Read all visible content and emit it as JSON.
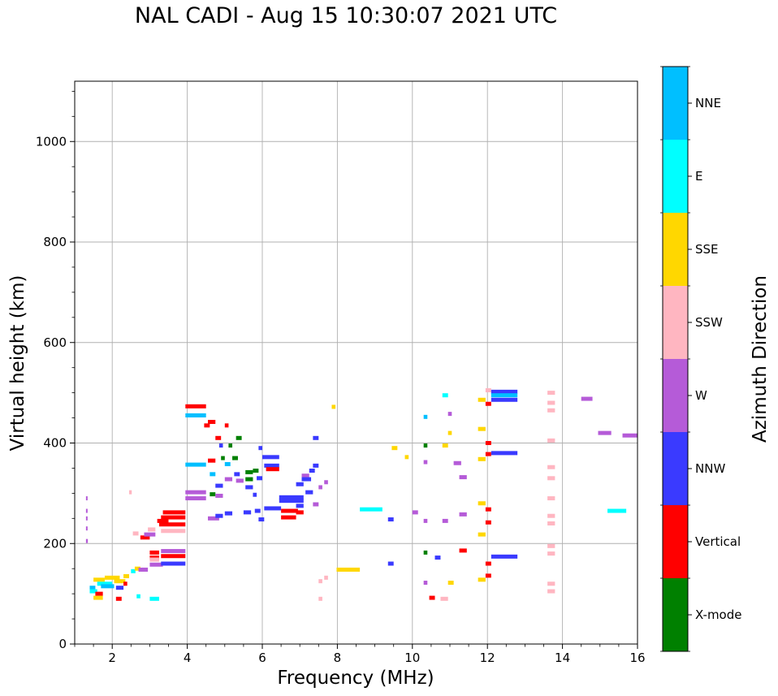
{
  "title": "NAL CADI - Aug 15 10:30:07 2021 UTC",
  "chart_data": {
    "type": "scatter",
    "title": "NAL CADI - Aug 15 10:30:07 2021 UTC",
    "xlabel": "Frequency (MHz)",
    "ylabel": "Virtual height (km)",
    "xlim": [
      1,
      16
    ],
    "ylim": [
      0,
      1120
    ],
    "xticks": [
      2,
      4,
      6,
      8,
      10,
      12,
      14,
      16
    ],
    "yticks": [
      0,
      200,
      400,
      600,
      800,
      1000
    ],
    "grid": true,
    "colorbar": {
      "label": "Azimuth Direction",
      "categories": [
        {
          "name": "X-mode",
          "color": "#008000"
        },
        {
          "name": "Vertical",
          "color": "#ff0000"
        },
        {
          "name": "NNW",
          "color": "#3a3aff"
        },
        {
          "name": "W",
          "color": "#b55bd8"
        },
        {
          "name": "SSW",
          "color": "#ffb6c1"
        },
        {
          "name": "SSE",
          "color": "#ffd700"
        },
        {
          "name": "E",
          "color": "#00ffff"
        },
        {
          "name": "NNE",
          "color": "#00bfff"
        }
      ]
    },
    "segments": [
      {
        "f1": 1.3,
        "f2": 1.33,
        "h": 290,
        "dir": "W"
      },
      {
        "f1": 1.3,
        "f2": 1.33,
        "h": 265,
        "dir": "W"
      },
      {
        "f1": 1.3,
        "f2": 1.33,
        "h": 250,
        "dir": "W"
      },
      {
        "f1": 1.3,
        "f2": 1.33,
        "h": 230,
        "dir": "W"
      },
      {
        "f1": 1.3,
        "f2": 1.35,
        "h": 205,
        "dir": "W"
      },
      {
        "f1": 1.4,
        "f2": 1.55,
        "h": 112,
        "dir": "NNE"
      },
      {
        "f1": 1.4,
        "f2": 1.6,
        "h": 105,
        "dir": "E"
      },
      {
        "f1": 1.5,
        "f2": 1.8,
        "h": 128,
        "dir": "SSE"
      },
      {
        "f1": 1.55,
        "f2": 1.75,
        "h": 100,
        "dir": "Vertical"
      },
      {
        "f1": 1.5,
        "f2": 1.75,
        "h": 92,
        "dir": "SSE"
      },
      {
        "f1": 1.6,
        "f2": 2.0,
        "h": 120,
        "dir": "E"
      },
      {
        "f1": 1.7,
        "f2": 2.05,
        "h": 115,
        "dir": "NNE"
      },
      {
        "f1": 1.8,
        "f2": 2.2,
        "h": 132,
        "dir": "SSE"
      },
      {
        "f1": 2.05,
        "f2": 2.35,
        "h": 125,
        "dir": "SSE"
      },
      {
        "f1": 2.1,
        "f2": 2.3,
        "h": 112,
        "dir": "NNW"
      },
      {
        "f1": 2.1,
        "f2": 2.25,
        "h": 90,
        "dir": "Vertical"
      },
      {
        "f1": 2.3,
        "f2": 2.45,
        "h": 135,
        "dir": "SSE"
      },
      {
        "f1": 2.3,
        "f2": 2.4,
        "h": 120,
        "dir": "Vertical"
      },
      {
        "f1": 2.45,
        "f2": 2.52,
        "h": 302,
        "dir": "SSW"
      },
      {
        "f1": 2.5,
        "f2": 2.62,
        "h": 145,
        "dir": "E"
      },
      {
        "f1": 2.55,
        "f2": 2.7,
        "h": 220,
        "dir": "SSW"
      },
      {
        "f1": 2.6,
        "f2": 2.75,
        "h": 150,
        "dir": "SSE"
      },
      {
        "f1": 2.7,
        "f2": 2.95,
        "h": 148,
        "dir": "W"
      },
      {
        "f1": 2.65,
        "f2": 2.75,
        "h": 95,
        "dir": "E"
      },
      {
        "f1": 2.75,
        "f2": 3.0,
        "h": 212,
        "dir": "Vertical"
      },
      {
        "f1": 2.85,
        "f2": 3.15,
        "h": 218,
        "dir": "W"
      },
      {
        "f1": 2.95,
        "f2": 3.15,
        "h": 228,
        "dir": "SSW"
      },
      {
        "f1": 3.0,
        "f2": 3.35,
        "h": 158,
        "dir": "W"
      },
      {
        "f1": 3.0,
        "f2": 3.25,
        "h": 172,
        "dir": "Vertical"
      },
      {
        "f1": 3.0,
        "f2": 3.25,
        "h": 182,
        "dir": "Vertical"
      },
      {
        "f1": 3.0,
        "f2": 3.25,
        "h": 168,
        "dir": "SSW"
      },
      {
        "f1": 3.0,
        "f2": 3.25,
        "h": 90,
        "dir": "E"
      },
      {
        "f1": 3.2,
        "f2": 3.5,
        "h": 245,
        "dir": "Vertical"
      },
      {
        "f1": 3.25,
        "f2": 3.95,
        "h": 238,
        "dir": "Vertical"
      },
      {
        "f1": 3.3,
        "f2": 3.95,
        "h": 252,
        "dir": "Vertical"
      },
      {
        "f1": 3.35,
        "f2": 3.95,
        "h": 262,
        "dir": "Vertical"
      },
      {
        "f1": 3.3,
        "f2": 3.95,
        "h": 175,
        "dir": "Vertical"
      },
      {
        "f1": 3.3,
        "f2": 3.95,
        "h": 185,
        "dir": "W"
      },
      {
        "f1": 3.3,
        "f2": 3.95,
        "h": 160,
        "dir": "NNW"
      },
      {
        "f1": 3.3,
        "f2": 3.95,
        "h": 225,
        "dir": "SSW"
      },
      {
        "f1": 3.95,
        "f2": 4.5,
        "h": 473,
        "dir": "Vertical"
      },
      {
        "f1": 3.95,
        "f2": 4.5,
        "h": 455,
        "dir": "NNE"
      },
      {
        "f1": 3.95,
        "f2": 4.5,
        "h": 357,
        "dir": "NNE"
      },
      {
        "f1": 3.95,
        "f2": 4.5,
        "h": 302,
        "dir": "W"
      },
      {
        "f1": 3.95,
        "f2": 4.5,
        "h": 290,
        "dir": "W"
      },
      {
        "f1": 4.45,
        "f2": 4.6,
        "h": 435,
        "dir": "Vertical"
      },
      {
        "f1": 4.55,
        "f2": 4.75,
        "h": 442,
        "dir": "Vertical"
      },
      {
        "f1": 4.55,
        "f2": 4.75,
        "h": 365,
        "dir": "Vertical"
      },
      {
        "f1": 4.6,
        "f2": 4.75,
        "h": 338,
        "dir": "NNE"
      },
      {
        "f1": 4.6,
        "f2": 4.75,
        "h": 298,
        "dir": "X-mode"
      },
      {
        "f1": 4.55,
        "f2": 4.85,
        "h": 250,
        "dir": "W"
      },
      {
        "f1": 4.75,
        "f2": 4.9,
        "h": 410,
        "dir": "Vertical"
      },
      {
        "f1": 4.75,
        "f2": 4.95,
        "h": 315,
        "dir": "NNW"
      },
      {
        "f1": 4.75,
        "f2": 4.95,
        "h": 295,
        "dir": "W"
      },
      {
        "f1": 4.75,
        "f2": 4.95,
        "h": 255,
        "dir": "NNW"
      },
      {
        "f1": 4.85,
        "f2": 4.95,
        "h": 395,
        "dir": "NNW"
      },
      {
        "f1": 4.9,
        "f2": 5.0,
        "h": 370,
        "dir": "X-mode"
      },
      {
        "f1": 5.0,
        "f2": 5.1,
        "h": 435,
        "dir": "Vertical"
      },
      {
        "f1": 5.0,
        "f2": 5.15,
        "h": 358,
        "dir": "NNE"
      },
      {
        "f1": 5.0,
        "f2": 5.2,
        "h": 328,
        "dir": "W"
      },
      {
        "f1": 5.0,
        "f2": 5.2,
        "h": 260,
        "dir": "NNW"
      },
      {
        "f1": 5.1,
        "f2": 5.2,
        "h": 395,
        "dir": "X-mode"
      },
      {
        "f1": 5.2,
        "f2": 5.35,
        "h": 370,
        "dir": "X-mode"
      },
      {
        "f1": 5.3,
        "f2": 5.45,
        "h": 410,
        "dir": "X-mode"
      },
      {
        "f1": 5.25,
        "f2": 5.4,
        "h": 338,
        "dir": "NNW"
      },
      {
        "f1": 5.3,
        "f2": 5.5,
        "h": 325,
        "dir": "W"
      },
      {
        "f1": 5.55,
        "f2": 5.75,
        "h": 342,
        "dir": "X-mode"
      },
      {
        "f1": 5.55,
        "f2": 5.75,
        "h": 328,
        "dir": "X-mode"
      },
      {
        "f1": 5.55,
        "f2": 5.75,
        "h": 312,
        "dir": "NNW"
      },
      {
        "f1": 5.5,
        "f2": 5.7,
        "h": 262,
        "dir": "NNW"
      },
      {
        "f1": 5.75,
        "f2": 5.9,
        "h": 345,
        "dir": "X-mode"
      },
      {
        "f1": 5.75,
        "f2": 5.85,
        "h": 297,
        "dir": "NNW"
      },
      {
        "f1": 5.8,
        "f2": 5.95,
        "h": 265,
        "dir": "NNW"
      },
      {
        "f1": 5.9,
        "f2": 6.0,
        "h": 390,
        "dir": "NNW"
      },
      {
        "f1": 5.85,
        "f2": 6.0,
        "h": 330,
        "dir": "NNW"
      },
      {
        "f1": 5.9,
        "f2": 6.05,
        "h": 248,
        "dir": "NNW"
      },
      {
        "f1": 6.0,
        "f2": 6.45,
        "h": 372,
        "dir": "NNW"
      },
      {
        "f1": 6.05,
        "f2": 6.45,
        "h": 355,
        "dir": "NNW"
      },
      {
        "f1": 6.1,
        "f2": 6.45,
        "h": 348,
        "dir": "Vertical"
      },
      {
        "f1": 6.05,
        "f2": 6.5,
        "h": 270,
        "dir": "NNW"
      },
      {
        "f1": 6.45,
        "f2": 7.1,
        "h": 292,
        "dir": "NNW"
      },
      {
        "f1": 6.45,
        "f2": 7.1,
        "h": 285,
        "dir": "NNW"
      },
      {
        "f1": 6.5,
        "f2": 6.95,
        "h": 265,
        "dir": "Vertical"
      },
      {
        "f1": 6.5,
        "f2": 6.9,
        "h": 252,
        "dir": "Vertical"
      },
      {
        "f1": 6.9,
        "f2": 7.1,
        "h": 262,
        "dir": "Vertical"
      },
      {
        "f1": 6.9,
        "f2": 7.1,
        "h": 275,
        "dir": "NNW"
      },
      {
        "f1": 6.9,
        "f2": 7.1,
        "h": 318,
        "dir": "NNW"
      },
      {
        "f1": 7.05,
        "f2": 7.25,
        "h": 335,
        "dir": "W"
      },
      {
        "f1": 7.05,
        "f2": 7.3,
        "h": 328,
        "dir": "NNW"
      },
      {
        "f1": 7.15,
        "f2": 7.35,
        "h": 302,
        "dir": "NNW"
      },
      {
        "f1": 7.25,
        "f2": 7.4,
        "h": 345,
        "dir": "NNW"
      },
      {
        "f1": 7.35,
        "f2": 7.5,
        "h": 355,
        "dir": "NNW"
      },
      {
        "f1": 7.35,
        "f2": 7.5,
        "h": 278,
        "dir": "W"
      },
      {
        "f1": 7.35,
        "f2": 7.5,
        "h": 410,
        "dir": "NNW"
      },
      {
        "f1": 7.5,
        "f2": 7.6,
        "h": 312,
        "dir": "W"
      },
      {
        "f1": 7.5,
        "f2": 7.6,
        "h": 90,
        "dir": "SSW"
      },
      {
        "f1": 7.5,
        "f2": 7.6,
        "h": 125,
        "dir": "SSW"
      },
      {
        "f1": 7.65,
        "f2": 7.75,
        "h": 322,
        "dir": "W"
      },
      {
        "f1": 7.65,
        "f2": 7.75,
        "h": 132,
        "dir": "SSW"
      },
      {
        "f1": 7.85,
        "f2": 7.95,
        "h": 472,
        "dir": "SSE"
      },
      {
        "f1": 7.98,
        "f2": 8.6,
        "h": 148,
        "dir": "SSE"
      },
      {
        "f1": 8.6,
        "f2": 9.2,
        "h": 268,
        "dir": "E"
      },
      {
        "f1": 9.45,
        "f2": 9.6,
        "h": 390,
        "dir": "SSE"
      },
      {
        "f1": 9.35,
        "f2": 9.5,
        "h": 248,
        "dir": "NNW"
      },
      {
        "f1": 9.35,
        "f2": 9.5,
        "h": 160,
        "dir": "NNW"
      },
      {
        "f1": 9.8,
        "f2": 9.9,
        "h": 372,
        "dir": "SSE"
      },
      {
        "f1": 10.0,
        "f2": 10.15,
        "h": 262,
        "dir": "W"
      },
      {
        "f1": 10.3,
        "f2": 10.4,
        "h": 452,
        "dir": "NNE"
      },
      {
        "f1": 10.3,
        "f2": 10.4,
        "h": 395,
        "dir": "X-mode"
      },
      {
        "f1": 10.3,
        "f2": 10.4,
        "h": 362,
        "dir": "W"
      },
      {
        "f1": 10.3,
        "f2": 10.4,
        "h": 245,
        "dir": "W"
      },
      {
        "f1": 10.3,
        "f2": 10.4,
        "h": 182,
        "dir": "X-mode"
      },
      {
        "f1": 10.3,
        "f2": 10.4,
        "h": 122,
        "dir": "W"
      },
      {
        "f1": 10.45,
        "f2": 10.6,
        "h": 92,
        "dir": "Vertical"
      },
      {
        "f1": 10.6,
        "f2": 10.75,
        "h": 172,
        "dir": "NNW"
      },
      {
        "f1": 10.75,
        "f2": 10.95,
        "h": 90,
        "dir": "SSW"
      },
      {
        "f1": 10.8,
        "f2": 10.95,
        "h": 495,
        "dir": "E"
      },
      {
        "f1": 10.8,
        "f2": 10.95,
        "h": 395,
        "dir": "SSE"
      },
      {
        "f1": 10.8,
        "f2": 10.95,
        "h": 245,
        "dir": "W"
      },
      {
        "f1": 10.95,
        "f2": 11.05,
        "h": 458,
        "dir": "W"
      },
      {
        "f1": 10.95,
        "f2": 11.05,
        "h": 420,
        "dir": "SSE"
      },
      {
        "f1": 10.95,
        "f2": 11.1,
        "h": 122,
        "dir": "SSE"
      },
      {
        "f1": 11.1,
        "f2": 11.3,
        "h": 360,
        "dir": "W"
      },
      {
        "f1": 11.25,
        "f2": 11.45,
        "h": 332,
        "dir": "W"
      },
      {
        "f1": 11.25,
        "f2": 11.45,
        "h": 258,
        "dir": "W"
      },
      {
        "f1": 11.25,
        "f2": 11.45,
        "h": 186,
        "dir": "Vertical"
      },
      {
        "f1": 11.75,
        "f2": 11.95,
        "h": 486,
        "dir": "SSE"
      },
      {
        "f1": 11.75,
        "f2": 11.95,
        "h": 428,
        "dir": "SSE"
      },
      {
        "f1": 11.75,
        "f2": 11.95,
        "h": 368,
        "dir": "SSE"
      },
      {
        "f1": 11.75,
        "f2": 11.95,
        "h": 280,
        "dir": "SSE"
      },
      {
        "f1": 11.75,
        "f2": 11.95,
        "h": 218,
        "dir": "SSE"
      },
      {
        "f1": 11.75,
        "f2": 11.95,
        "h": 128,
        "dir": "SSE"
      },
      {
        "f1": 11.95,
        "f2": 12.1,
        "h": 505,
        "dir": "SSW"
      },
      {
        "f1": 11.95,
        "f2": 12.1,
        "h": 478,
        "dir": "Vertical"
      },
      {
        "f1": 11.95,
        "f2": 12.1,
        "h": 400,
        "dir": "Vertical"
      },
      {
        "f1": 11.95,
        "f2": 12.1,
        "h": 378,
        "dir": "Vertical"
      },
      {
        "f1": 11.95,
        "f2": 12.1,
        "h": 268,
        "dir": "Vertical"
      },
      {
        "f1": 11.95,
        "f2": 12.1,
        "h": 242,
        "dir": "Vertical"
      },
      {
        "f1": 11.95,
        "f2": 12.1,
        "h": 160,
        "dir": "Vertical"
      },
      {
        "f1": 11.95,
        "f2": 12.1,
        "h": 136,
        "dir": "Vertical"
      },
      {
        "f1": 12.1,
        "f2": 12.8,
        "h": 502,
        "dir": "NNW"
      },
      {
        "f1": 12.1,
        "f2": 12.8,
        "h": 495,
        "dir": "NNE"
      },
      {
        "f1": 12.1,
        "f2": 12.8,
        "h": 486,
        "dir": "NNW"
      },
      {
        "f1": 12.1,
        "f2": 12.8,
        "h": 380,
        "dir": "NNW"
      },
      {
        "f1": 12.1,
        "f2": 12.8,
        "h": 174,
        "dir": "NNW"
      },
      {
        "f1": 13.6,
        "f2": 13.8,
        "h": 500,
        "dir": "SSW"
      },
      {
        "f1": 13.6,
        "f2": 13.8,
        "h": 480,
        "dir": "SSW"
      },
      {
        "f1": 13.6,
        "f2": 13.8,
        "h": 465,
        "dir": "SSW"
      },
      {
        "f1": 13.6,
        "f2": 13.8,
        "h": 405,
        "dir": "SSW"
      },
      {
        "f1": 13.6,
        "f2": 13.8,
        "h": 352,
        "dir": "SSW"
      },
      {
        "f1": 13.6,
        "f2": 13.8,
        "h": 330,
        "dir": "SSW"
      },
      {
        "f1": 13.6,
        "f2": 13.8,
        "h": 290,
        "dir": "SSW"
      },
      {
        "f1": 13.6,
        "f2": 13.8,
        "h": 255,
        "dir": "SSW"
      },
      {
        "f1": 13.6,
        "f2": 13.8,
        "h": 240,
        "dir": "SSW"
      },
      {
        "f1": 13.6,
        "f2": 13.8,
        "h": 195,
        "dir": "SSW"
      },
      {
        "f1": 13.6,
        "f2": 13.8,
        "h": 180,
        "dir": "SSW"
      },
      {
        "f1": 13.6,
        "f2": 13.8,
        "h": 120,
        "dir": "SSW"
      },
      {
        "f1": 13.6,
        "f2": 13.8,
        "h": 105,
        "dir": "SSW"
      },
      {
        "f1": 14.5,
        "f2": 14.8,
        "h": 488,
        "dir": "W"
      },
      {
        "f1": 14.95,
        "f2": 15.3,
        "h": 420,
        "dir": "W"
      },
      {
        "f1": 15.2,
        "f2": 15.7,
        "h": 265,
        "dir": "E"
      },
      {
        "f1": 15.6,
        "f2": 16.0,
        "h": 415,
        "dir": "W"
      }
    ]
  }
}
